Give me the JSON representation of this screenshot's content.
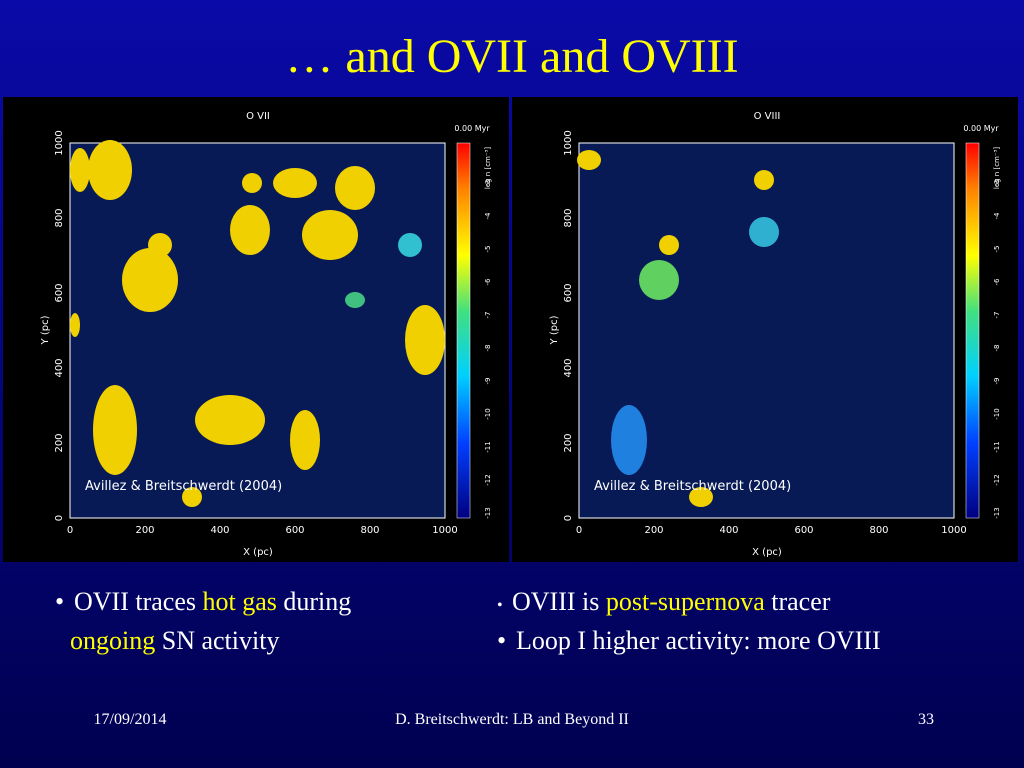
{
  "title": "… and OVII and OVIII",
  "panels": [
    {
      "title": "O VII",
      "time": "0.00 Myr",
      "colorbar_label": "log n [cm⁻³]",
      "colorbar_ticks": [
        -13,
        -12,
        -11,
        -10,
        -9,
        -8,
        -7,
        -6,
        -5,
        -4,
        -3
      ],
      "xticks": [
        0,
        200,
        400,
        600,
        800,
        1000
      ],
      "yticks": [
        0,
        200,
        400,
        600,
        800,
        1000
      ],
      "xlabel": "X (pc)",
      "ylabel": "Y (pc)",
      "credit": "Avillez & Breitschwerdt (2004)"
    },
    {
      "title": "O VIII",
      "time": "0.00 Myr",
      "colorbar_label": "log n [cm⁻³]",
      "colorbar_ticks": [
        -13,
        -12,
        -11,
        -10,
        -9,
        -8,
        -7,
        -6,
        -5,
        -4,
        -3
      ],
      "xticks": [
        0,
        200,
        400,
        600,
        800,
        1000
      ],
      "yticks": [
        0,
        200,
        400,
        600,
        800,
        1000
      ],
      "xlabel": "X (pc)",
      "ylabel": "Y (pc)",
      "credit": "Avillez & Breitschwerdt (2004)"
    }
  ],
  "bullets": [
    {
      "items": [
        {
          "bullet": "•",
          "lines": [
            [
              {
                "text": "OVII traces "
              },
              {
                "text": "hot gas",
                "highlight": true
              },
              {
                "text": " during"
              }
            ],
            [
              {
                "text": "ongoing",
                "highlight": true
              },
              {
                "text": " SN activity"
              }
            ]
          ]
        }
      ]
    },
    {
      "items": [
        {
          "bullet": "•",
          "lines": [
            [
              {
                "text": "OVIII is "
              },
              {
                "text": "post-supernova",
                "highlight": true
              },
              {
                "text": " tracer"
              }
            ]
          ]
        },
        {
          "bullet": "•",
          "lines": [
            [
              {
                "text": "Loop I higher activity: more OVIII"
              }
            ]
          ]
        }
      ]
    }
  ],
  "footer": {
    "date": "17/09/2014",
    "center": "D. Breitschwerdt: LB and Beyond II",
    "page": "33"
  }
}
